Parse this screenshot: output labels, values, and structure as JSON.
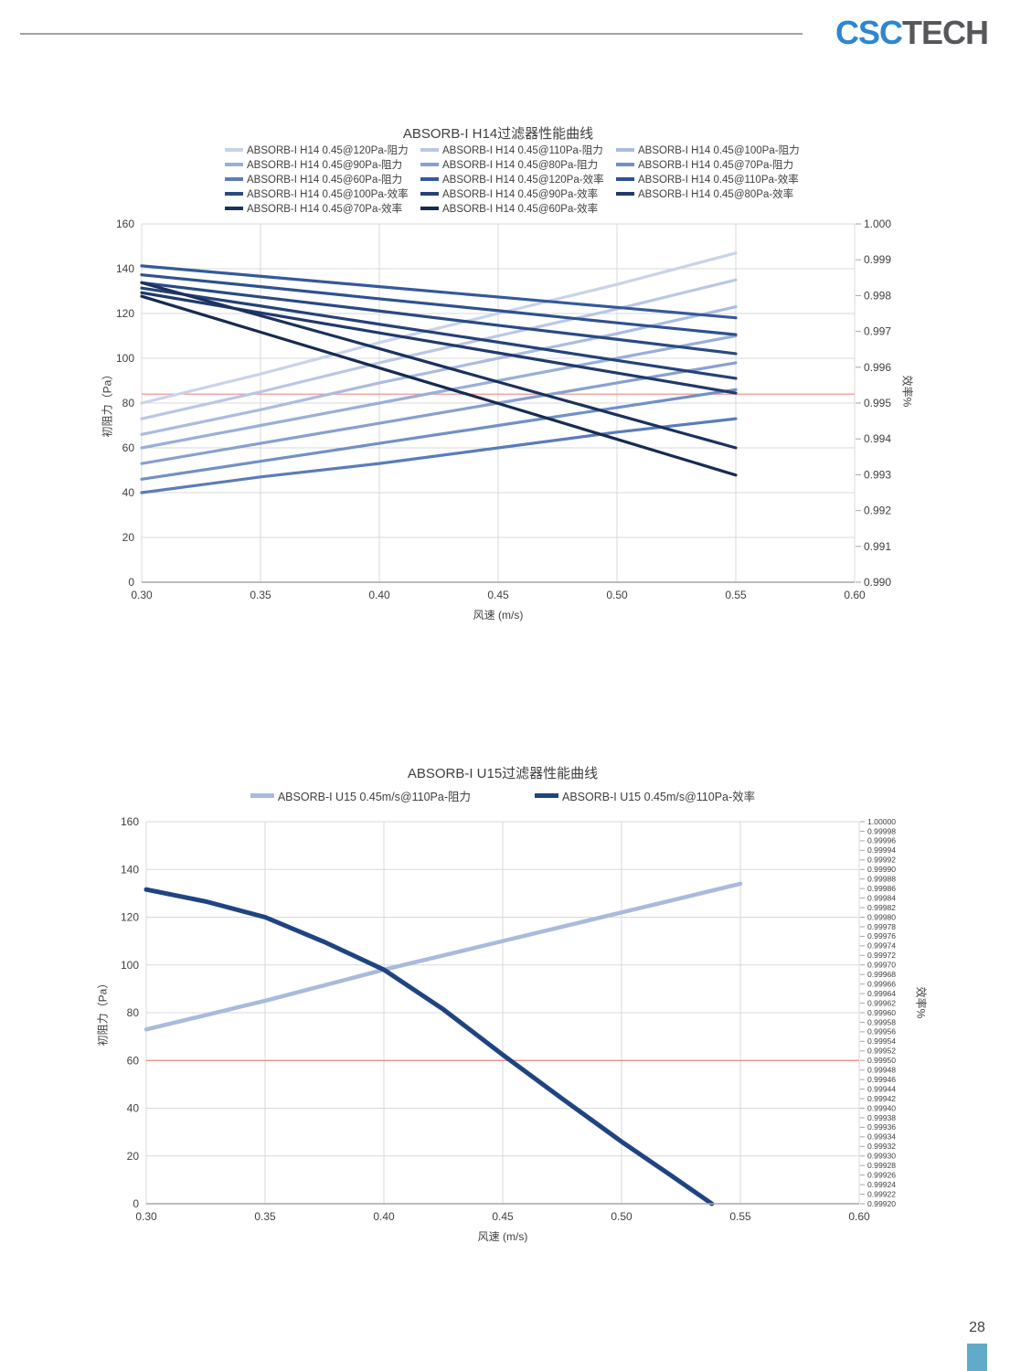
{
  "header": {
    "logo": {
      "csc": "CSC",
      "tech": "TECH",
      "csc_color": "#2e86d2",
      "tech_color": "#55575a"
    }
  },
  "page": {
    "number": "28",
    "accent_color": "#62aac9"
  },
  "chart_data": [
    {
      "type": "line",
      "title": "ABSORB-I H14过滤器性能曲线",
      "xlabel": "风速 (m/s)",
      "ylabel_left": "初阻力（Pa）",
      "ylabel_right": "效率%",
      "x_range": [
        0.3,
        0.6
      ],
      "y_left_range": [
        0,
        160
      ],
      "y_right_range": [
        0.99,
        1.0
      ],
      "x_ticks": [
        "0.30",
        "0.35",
        "0.40",
        "0.45",
        "0.50",
        "0.55",
        "0.60"
      ],
      "y_left_ticks": [
        "0",
        "20",
        "40",
        "60",
        "80",
        "100",
        "120",
        "140",
        "160"
      ],
      "y_right_ticks": [
        "1.000",
        "0.999",
        "0.998",
        "0.997",
        "0.996",
        "0.995",
        "0.994",
        "0.993",
        "0.992",
        "0.991",
        "0.990"
      ],
      "grid": true,
      "legend_position": "top",
      "line_width": 3.2,
      "ref_line": {
        "axis": "left",
        "value": 84,
        "color": "#ed8a87"
      },
      "x": [
        0.3,
        0.35,
        0.4,
        0.45,
        0.5,
        0.55
      ],
      "series": [
        {
          "name": "ABSORB-I H14 0.45@120Pa-阻力",
          "axis": "left",
          "color": "#c9d3e9",
          "values": [
            80,
            93,
            107,
            120,
            133,
            147
          ]
        },
        {
          "name": "ABSORB-I H14 0.45@110Pa-阻力",
          "axis": "left",
          "color": "#bac7e4",
          "values": [
            73,
            85,
            98,
            110,
            122,
            135
          ]
        },
        {
          "name": "ABSORB-I H14 0.45@100Pa-阻力",
          "axis": "left",
          "color": "#abbcdf",
          "values": [
            66,
            77,
            89,
            100,
            111,
            123
          ]
        },
        {
          "name": "ABSORB-I H14 0.45@90Pa-阻力",
          "axis": "left",
          "color": "#9aafd8",
          "values": [
            60,
            70,
            80,
            90,
            100,
            110
          ]
        },
        {
          "name": "ABSORB-I H14 0.45@80Pa-阻力",
          "axis": "left",
          "color": "#87a0d0",
          "values": [
            53,
            62,
            71,
            80,
            89,
            98
          ]
        },
        {
          "name": "ABSORB-I H14 0.45@70Pa-阻力",
          "axis": "left",
          "color": "#7190c7",
          "values": [
            46,
            54,
            62,
            70,
            78,
            86
          ]
        },
        {
          "name": "ABSORB-I H14 0.45@60Pa-阻力",
          "axis": "left",
          "color": "#5a7cba",
          "values": [
            40,
            47,
            53,
            60,
            67,
            73
          ]
        },
        {
          "name": "ABSORB-I H14 0.45@120Pa-效率",
          "axis": "right",
          "color": "#35599c",
          "values": [
            0.99883,
            0.99854,
            0.99825,
            0.99796,
            0.99767,
            0.99738
          ]
        },
        {
          "name": "ABSORB-I H14 0.45@110Pa-效率",
          "axis": "right",
          "color": "#2f5190",
          "values": [
            0.99858,
            0.99825,
            0.99791,
            0.99758,
            0.99724,
            0.99691
          ]
        },
        {
          "name": "ABSORB-I H14 0.45@100Pa-效率",
          "axis": "right",
          "color": "#2a4a84",
          "values": [
            0.99836,
            0.99796,
            0.99757,
            0.99717,
            0.99678,
            0.99638
          ]
        },
        {
          "name": "ABSORB-I H14 0.45@90Pa-效率",
          "axis": "right",
          "color": "#254278",
          "values": [
            0.99821,
            0.99771,
            0.9972,
            0.9967,
            0.99619,
            0.99569
          ]
        },
        {
          "name": "ABSORB-I H14 0.45@80Pa-效率",
          "axis": "right",
          "color": "#203a6b",
          "values": [
            0.99808,
            0.99752,
            0.99696,
            0.9964,
            0.99584,
            0.99528
          ]
        },
        {
          "name": "ABSORB-I H14 0.45@70Pa-效率",
          "axis": "right",
          "color": "#1b325e",
          "values": [
            0.99836,
            0.99744,
            0.99652,
            0.99559,
            0.99467,
            0.99375
          ]
        },
        {
          "name": "ABSORB-I H14 0.45@60Pa-效率",
          "axis": "right",
          "color": "#172b51",
          "values": [
            0.99798,
            0.99698,
            0.99598,
            0.99499,
            0.99399,
            0.99299
          ]
        }
      ]
    },
    {
      "type": "line",
      "title": "ABSORB-I U15过滤器性能曲线",
      "xlabel": "风速 (m/s)",
      "ylabel_left": "初阻力（Pa）",
      "ylabel_right": "效率%",
      "x_range": [
        0.3,
        0.6
      ],
      "y_left_range": [
        0,
        160
      ],
      "y_right_range": [
        0.9992,
        1.0
      ],
      "x_ticks": [
        "0.30",
        "0.35",
        "0.40",
        "0.45",
        "0.50",
        "0.55",
        "0.60"
      ],
      "y_left_ticks": [
        "0",
        "20",
        "40",
        "60",
        "80",
        "100",
        "120",
        "140",
        "160"
      ],
      "y_right_ticks": [
        "1.00000",
        "0.99998",
        "0.99996",
        "0.99994",
        "0.99992",
        "0.99990",
        "0.99988",
        "0.99986",
        "0.99984",
        "0.99982",
        "0.99980",
        "0.99978",
        "0.99976",
        "0.99974",
        "0.99972",
        "0.99970",
        "0.99968",
        "0.99966",
        "0.99964",
        "0.99962",
        "0.99960",
        "0.99958",
        "0.99956",
        "0.99954",
        "0.99952",
        "0.99950",
        "0.99948",
        "0.99946",
        "0.99944",
        "0.99942",
        "0.99940",
        "0.99938",
        "0.99936",
        "0.99934",
        "0.99932",
        "0.99930",
        "0.99928",
        "0.99926",
        "0.99924",
        "0.99922",
        "0.99920"
      ],
      "grid": true,
      "legend_position": "top",
      "line_width": 4.5,
      "ref_line": {
        "axis": "left",
        "value": 60,
        "color": "#ed8a87"
      },
      "series": [
        {
          "name": "ABSORB-I U15 0.45m/s@110Pa-阻力",
          "axis": "left",
          "color": "#a9badd",
          "width": 4.5,
          "x": [
            0.3,
            0.35,
            0.4,
            0.45,
            0.5,
            0.55
          ],
          "values": [
            73,
            85,
            98,
            110,
            122,
            134
          ]
        },
        {
          "name": "ABSORB-I U15 0.45m/s@110Pa-效率",
          "axis": "right",
          "color": "#1f4482",
          "width": 5,
          "x": [
            0.3,
            0.325,
            0.35,
            0.375,
            0.4,
            0.425,
            0.45,
            0.475,
            0.5,
            0.52,
            0.538
          ],
          "values": [
            0.999858,
            0.999833,
            0.9998,
            0.999748,
            0.99969,
            0.999607,
            0.999512,
            0.99942,
            0.99933,
            0.999262,
            0.9992
          ]
        }
      ]
    }
  ]
}
